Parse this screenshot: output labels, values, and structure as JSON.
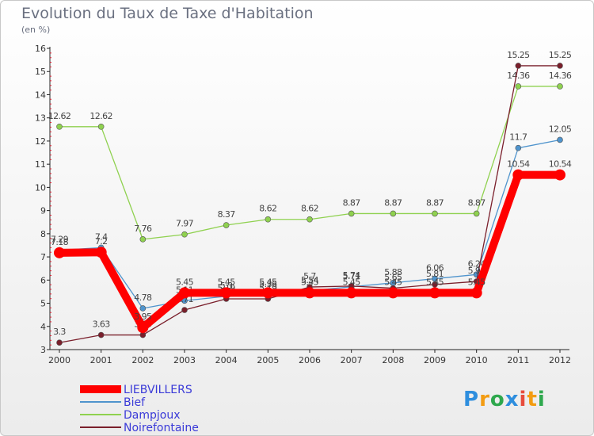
{
  "header": {
    "title": "Evolution du Taux de Taxe d'Habitation",
    "unit": "(en %)"
  },
  "chart_data": {
    "type": "line",
    "title": "Evolution du Taux de Taxe d'Habitation",
    "ylabel": "(en %)",
    "xlabel": "",
    "ylim": [
      3,
      16
    ],
    "yticks": [
      "3",
      "4",
      "5",
      "6",
      "7",
      "8",
      "9",
      "10",
      "11",
      "12",
      "13",
      "14",
      "15",
      "16"
    ],
    "categories": [
      "2000",
      "2001",
      "2002",
      "2003",
      "2004",
      "2005",
      "2006",
      "2007",
      "2008",
      "2009",
      "2010",
      "2011",
      "2012"
    ],
    "grid": false,
    "series": [
      {
        "name": "Dampjoux",
        "color": "#8fd14f",
        "values": [
          12.62,
          12.62,
          7.76,
          7.97,
          8.37,
          8.62,
          8.62,
          8.87,
          8.87,
          8.87,
          8.87,
          14.36,
          14.36
        ],
        "labels": [
          "12.62",
          "12.62",
          "7.76",
          "7.97",
          "8.37",
          "8.62",
          "8.62",
          "8.87",
          "8.87",
          "8.87",
          "8.87",
          "14.36",
          "14.36"
        ]
      },
      {
        "name": "Bief",
        "color": "#4f94cd",
        "values": [
          7.29,
          7.4,
          4.78,
          5.11,
          5.3,
          5.36,
          5.54,
          5.71,
          5.88,
          6.06,
          6.24,
          11.7,
          12.05
        ],
        "labels": [
          "7.29",
          "7.4",
          "4.78",
          "5.11",
          "5.3",
          "5.36",
          "5.54",
          "5.71",
          "5.88",
          "6.06",
          "6.24",
          "11.7",
          "12.05"
        ]
      },
      {
        "name": "Noirefontaine",
        "color": "#7a1f2b",
        "values": [
          3.3,
          3.63,
          3.63,
          4.71,
          5.19,
          5.19,
          5.7,
          5.74,
          5.65,
          5.81,
          5.94,
          15.25,
          15.25
        ],
        "labels": [
          "3.3",
          "3.63",
          "3.63",
          "4.71",
          "5.19",
          "5.19",
          "5.7",
          "5.74",
          "5.65",
          "5.81",
          "5.94",
          "15.25",
          "15.25"
        ]
      },
      {
        "name": "LIEBVILLERS",
        "color": "#ff0000",
        "values": [
          7.18,
          7.2,
          3.95,
          5.45,
          5.45,
          5.45,
          5.45,
          5.45,
          5.45,
          5.45,
          5.45,
          10.54,
          10.54
        ],
        "labels": [
          "7.18",
          "7.2",
          "3.95",
          "5.45",
          "5.45",
          "5.45",
          "5.45",
          "5.45",
          "5.45",
          "5.45",
          "5.45",
          "10.54",
          "10.54"
        ]
      }
    ],
    "legend": [
      "LIEBVILLERS",
      "Bief",
      "Dampjoux",
      "Noirefontaine"
    ]
  },
  "legend_colors": {
    "LIEBVILLERS": "#ff0000",
    "Bief": "#4f94cd",
    "Dampjoux": "#8fd14f",
    "Noirefontaine": "#7a1f2b"
  },
  "brand": {
    "letters": [
      "P",
      "r",
      "o",
      "x",
      "i",
      "t",
      "i"
    ],
    "colors": [
      "#2e8ede",
      "#f39c12",
      "#2ea84d",
      "#2e8ede",
      "#e74c3c",
      "#f39c12",
      "#2ea84d"
    ]
  }
}
